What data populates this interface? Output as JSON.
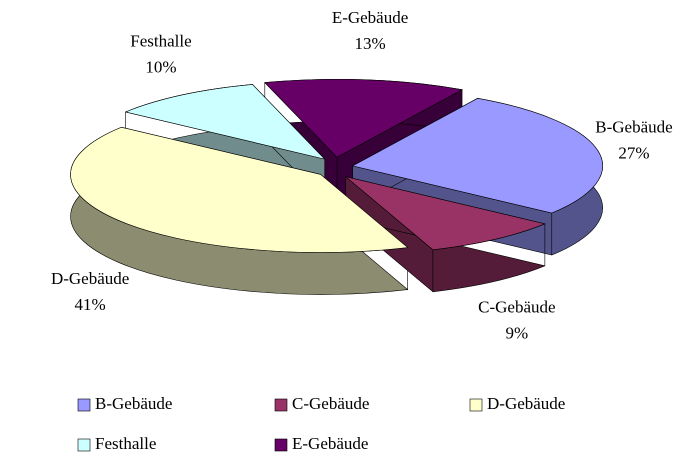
{
  "chart_data": {
    "type": "pie",
    "categories": [
      "B-Gebäude",
      "C-Gebäude",
      "D-Gebäude",
      "Festhalle",
      "E-Gebäude"
    ],
    "values": [
      27,
      9,
      41,
      10,
      13
    ],
    "value_labels": [
      "27%",
      "9%",
      "41%",
      "10%",
      "13%"
    ],
    "colors": [
      "#9999ff",
      "#993366",
      "#ffffcc",
      "#ccffff",
      "#660066"
    ],
    "legend": "bottom"
  }
}
